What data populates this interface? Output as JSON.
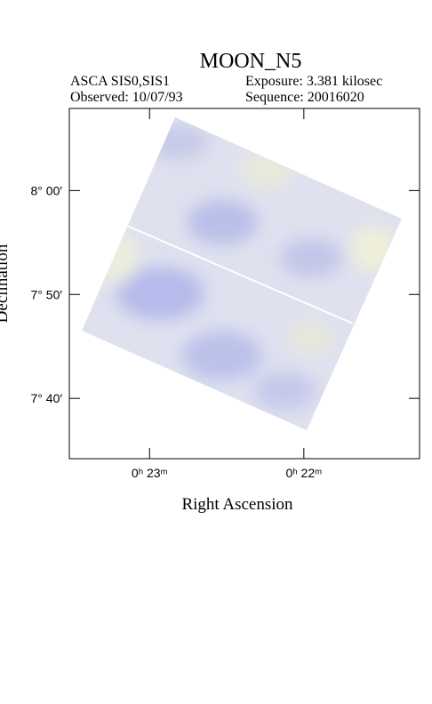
{
  "chart_data": {
    "type": "image",
    "title": "MOON_N5",
    "instrument": "ASCA SIS0,SIS1",
    "exposure": "Exposure: 3.381 kilosec",
    "observed": "Observed: 10/07/93",
    "sequence": "Sequence: 20016020",
    "x_label": "Right Ascension",
    "y_label": "Declination",
    "xlim": [
      23.52,
      21.25
    ],
    "xticks": [
      {
        "value": 23,
        "label": "0ʰ 23ᵐ"
      },
      {
        "value": 22,
        "label": "0ʰ 22ᵐ"
      }
    ],
    "ylim": [
      454.2,
      487.9
    ],
    "yticks": [
      {
        "value": 480,
        "label": "8° 00′"
      },
      {
        "value": 470,
        "label": "7° 50′"
      },
      {
        "value": 460,
        "label": "7° 40′"
      }
    ]
  }
}
